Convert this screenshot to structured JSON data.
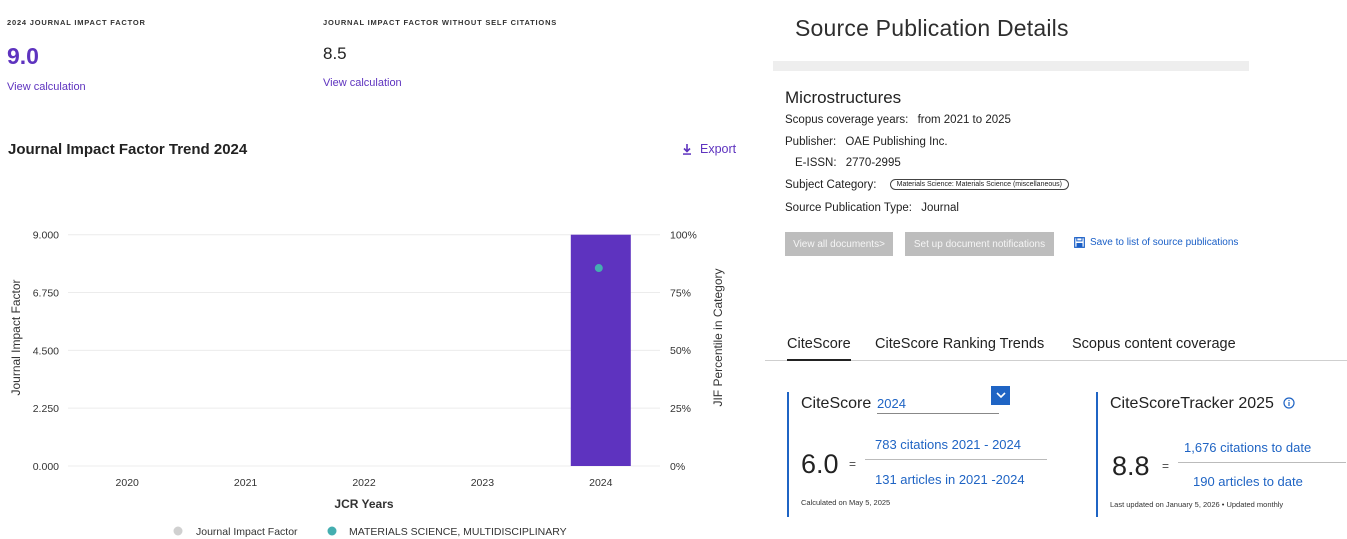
{
  "jcr": {
    "jif_label": "2024 JOURNAL IMPACT FACTOR",
    "jif_value": "9.0",
    "jif_link": "View calculation",
    "jif_noself_label": "JOURNAL IMPACT FACTOR WITHOUT SELF CITATIONS",
    "jif_noself_value": "8.5",
    "jif_noself_link": "View calculation",
    "trend_title": "Journal Impact Factor Trend 2024",
    "export_label": "Export",
    "colors": {
      "accent": "#5e33bf",
      "bar": "#5e33bf",
      "percentile_point": "#44aeb0",
      "legend_jif": "#d0d0d0"
    }
  },
  "chart_data": {
    "type": "bar",
    "categories": [
      "2020",
      "2021",
      "2022",
      "2023",
      "2024"
    ],
    "series": [
      {
        "name": "Journal Impact Factor",
        "axis": "left",
        "values": [
          null,
          null,
          null,
          null,
          9.0
        ]
      },
      {
        "name": "MATERIALS SCIENCE, MULTIDISCIPLINARY",
        "axis": "right",
        "kind": "scatter",
        "values": [
          null,
          null,
          null,
          null,
          85.5
        ]
      }
    ],
    "xlabel": "JCR Years",
    "ylabel": "Journal Impact Factor",
    "y2label": "JIF Percentile in Category",
    "ylim": [
      0,
      10
    ],
    "yticks": [
      "0.000",
      "2.250",
      "4.500",
      "6.750",
      "9.000"
    ],
    "ytick_values": [
      0,
      2.25,
      4.5,
      6.75,
      9.0
    ],
    "y2lim": [
      0,
      111
    ],
    "y2ticks": [
      "0%",
      "25%",
      "50%",
      "75%",
      "100%"
    ],
    "y2tick_values": [
      0,
      25,
      50,
      75,
      100
    ],
    "grid": true,
    "legend_position": "bottom"
  },
  "scopus": {
    "title": "Source Publication Details",
    "journal_name": "Microstructures",
    "coverage_label": "Scopus coverage years:",
    "coverage_value": "from 2021 to 2025",
    "publisher_label": "Publisher:",
    "publisher_value": "OAE Publishing Inc.",
    "eissn_label": "E-ISSN:",
    "eissn_value": "2770-2995",
    "subject_label": "Subject Category:",
    "subject_value": "Materials Science: Materials Science (miscellaneous)",
    "type_label": "Source Publication Type:",
    "type_value": "Journal",
    "btn_view_docs": "View all documents>",
    "btn_notifications": "Set up document notifications",
    "save_link": "Save to list of source publications",
    "tabs": [
      {
        "label": "CiteScore",
        "active": true
      },
      {
        "label": "CiteScore Ranking Trends",
        "active": false
      },
      {
        "label": "Scopus content coverage",
        "active": false
      }
    ],
    "citescore": {
      "heading": "CiteScore",
      "year": "2024",
      "value": "6.0",
      "equals": "=",
      "numerator": "783 citations 2021 - 2024",
      "denominator": "131 articles in 2021 -2024",
      "footnote": "Calculated on May 5, 2025"
    },
    "tracker": {
      "heading": "CiteScoreTracker 2025",
      "value": "8.8",
      "equals": "=",
      "numerator": "1,676 citations to date",
      "denominator": "190 articles to date",
      "footnote": "Last updated on January 5, 2026 • Updated monthly"
    },
    "colors": {
      "link": "#1f64c4",
      "button_grey": "#bdbdbd"
    }
  }
}
